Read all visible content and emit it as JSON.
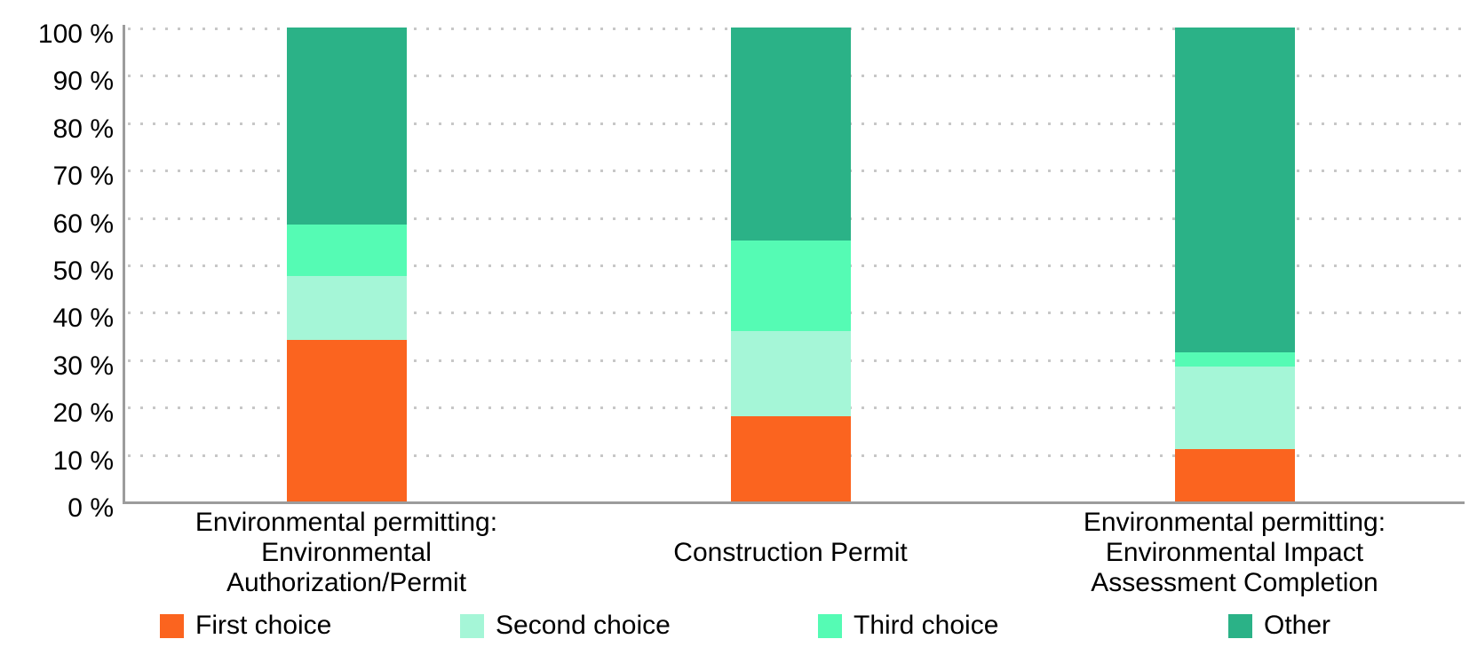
{
  "chart_data": {
    "type": "bar",
    "stacked": true,
    "unit": "%",
    "title": "",
    "xlabel": "",
    "ylabel": "",
    "categories": [
      [
        "Environmental permitting:",
        "Environmental",
        "Authorization/Permit"
      ],
      [
        "Construction Permit"
      ],
      [
        "Environmental permitting:",
        "Environmental Impact",
        "Assessment Completion"
      ]
    ],
    "series": [
      {
        "name": "First choice",
        "color": "#FB641F",
        "values": [
          34,
          18,
          11
        ]
      },
      {
        "name": "Second choice",
        "color": "#A5F6D7",
        "values": [
          13.5,
          18,
          17.5
        ]
      },
      {
        "name": "Third choice",
        "color": "#55FBB4",
        "values": [
          11,
          19,
          3
        ]
      },
      {
        "name": "Other",
        "color": "#2BB287",
        "values": [
          41.5,
          45,
          68.5
        ]
      }
    ],
    "ylim": [
      0,
      100
    ],
    "yticks": [
      0,
      10,
      20,
      30,
      40,
      50,
      60,
      70,
      80,
      90,
      100
    ],
    "ytick_labels": [
      "0 %",
      "10 %",
      "20 %",
      "30 %",
      "40 %",
      "50 %",
      "60 %",
      "70 %",
      "80 %",
      "90 %",
      "100 %"
    ],
    "grid": {
      "horizontal": "dotted",
      "color": "#c7c7c7"
    },
    "axis_color": "#9c9c9c",
    "legend_position": "bottom"
  }
}
